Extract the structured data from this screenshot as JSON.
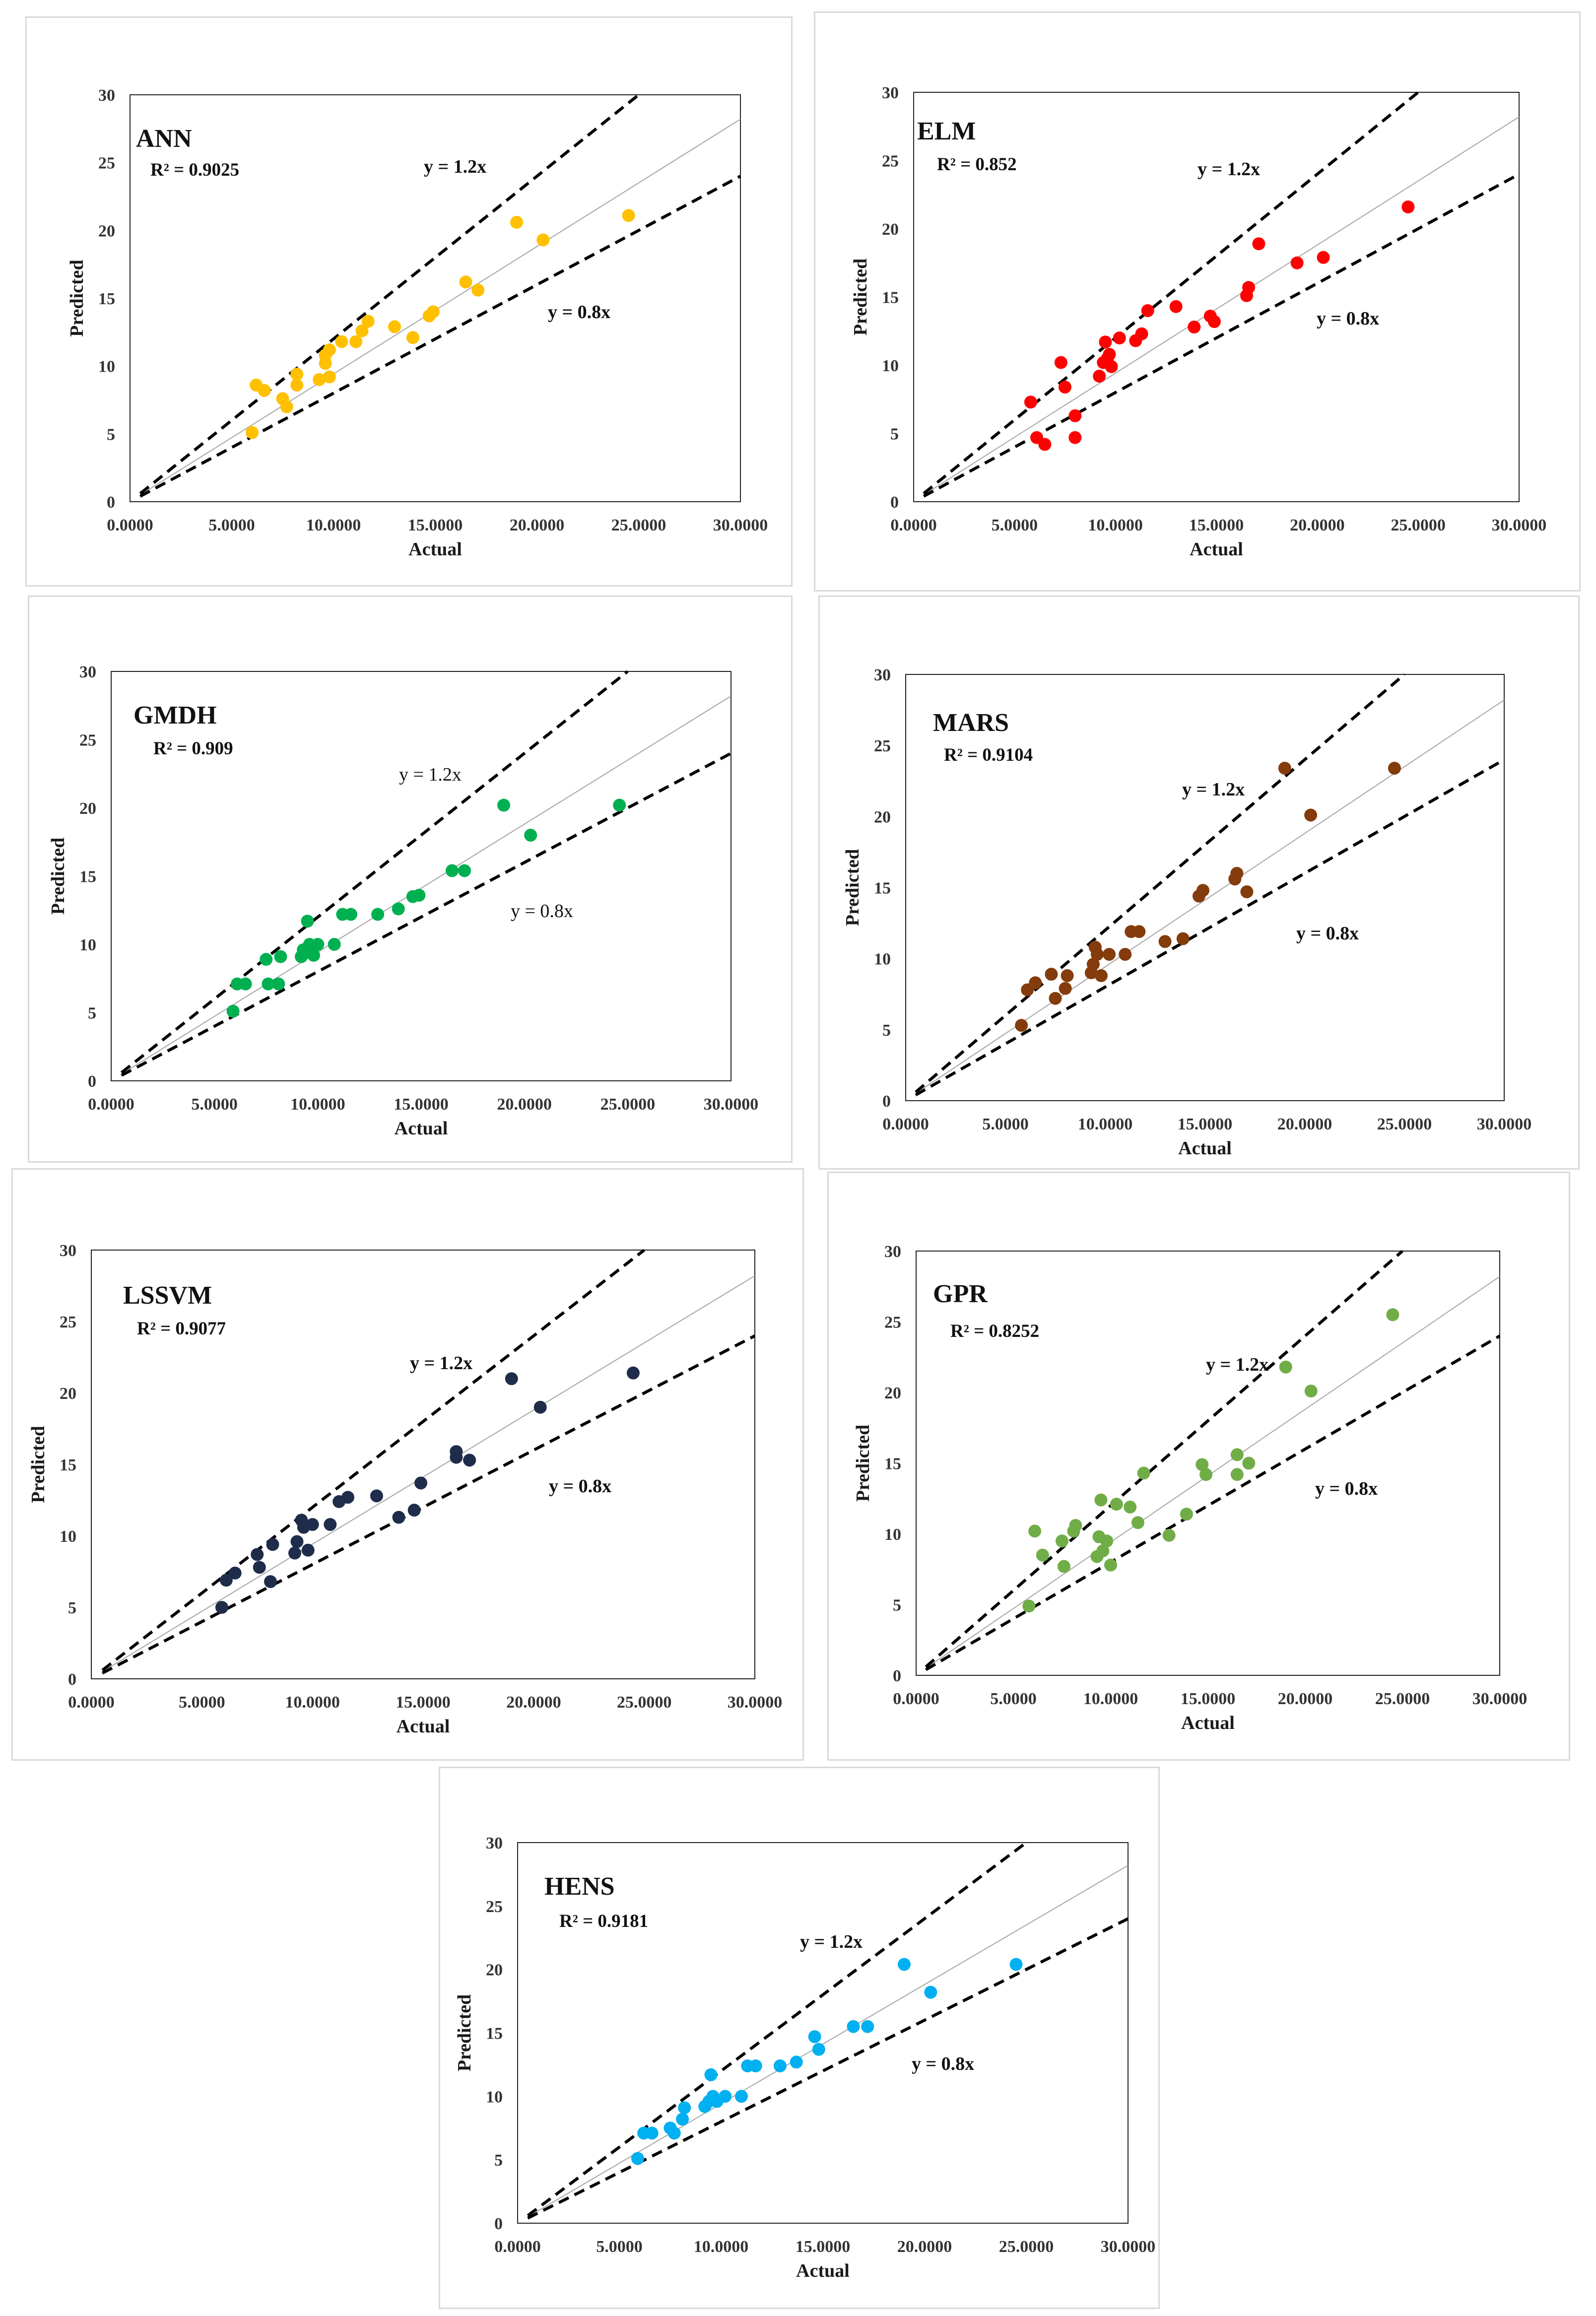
{
  "figure": {
    "x_axis_label": "Actual",
    "y_axis_label": "Predicted",
    "line_upper_label": "y = 1.2x",
    "line_lower_label": "y = 0.8x",
    "x_tick_labels": [
      "0.0000",
      "5.0000",
      "10.0000",
      "15.0000",
      "20.0000",
      "25.0000",
      "30.0000"
    ],
    "y_tick_labels": [
      "0",
      "5",
      "10",
      "15",
      "20",
      "25",
      "30"
    ]
  },
  "chart_data": [
    {
      "id": "ann",
      "type": "scatter",
      "title": "ANN",
      "r2_label": "R² = 0.9025",
      "color": "#FFC000",
      "xlabel": "Actual",
      "ylabel": "Predicted",
      "xlim": [
        0,
        30
      ],
      "ylim": [
        0,
        30
      ],
      "reference_lines": [
        "y = 1.2x",
        "y = 0.8x",
        "y = x"
      ],
      "points": [
        [
          6.0,
          5.1
        ],
        [
          6.2,
          8.6
        ],
        [
          6.6,
          8.2
        ],
        [
          7.5,
          7.6
        ],
        [
          7.7,
          7.0
        ],
        [
          8.2,
          8.6
        ],
        [
          8.2,
          9.4
        ],
        [
          9.3,
          9.0
        ],
        [
          9.6,
          10.2
        ],
        [
          9.6,
          10.8
        ],
        [
          9.8,
          9.2
        ],
        [
          9.8,
          11.2
        ],
        [
          10.4,
          11.8
        ],
        [
          11.1,
          11.8
        ],
        [
          11.4,
          12.6
        ],
        [
          11.7,
          13.3
        ],
        [
          13.0,
          12.9
        ],
        [
          13.9,
          12.1
        ],
        [
          14.7,
          13.7
        ],
        [
          14.9,
          14.0
        ],
        [
          16.5,
          16.2
        ],
        [
          17.1,
          15.6
        ],
        [
          19.0,
          20.6
        ],
        [
          20.3,
          19.3
        ],
        [
          24.5,
          21.1
        ]
      ]
    },
    {
      "id": "elm",
      "type": "scatter",
      "title": "ELM",
      "r2_label": "R² = 0.852",
      "color": "#FF0000",
      "xlabel": "Actual",
      "ylabel": "Predicted",
      "xlim": [
        0,
        30
      ],
      "ylim": [
        0,
        30
      ],
      "reference_lines": [
        "y = 1.2x",
        "y = 0.8x",
        "y = x"
      ],
      "points": [
        [
          5.8,
          7.3
        ],
        [
          6.1,
          4.7
        ],
        [
          6.5,
          4.2
        ],
        [
          7.3,
          10.2
        ],
        [
          7.5,
          8.4
        ],
        [
          8.0,
          4.7
        ],
        [
          8.0,
          6.3
        ],
        [
          9.2,
          9.2
        ],
        [
          9.4,
          10.2
        ],
        [
          9.5,
          11.7
        ],
        [
          9.6,
          10.5
        ],
        [
          9.7,
          10.8
        ],
        [
          9.8,
          9.9
        ],
        [
          10.2,
          12.0
        ],
        [
          11.0,
          11.8
        ],
        [
          11.3,
          12.3
        ],
        [
          11.6,
          14.0
        ],
        [
          13.0,
          14.3
        ],
        [
          13.9,
          12.8
        ],
        [
          14.7,
          13.6
        ],
        [
          14.9,
          13.2
        ],
        [
          16.5,
          15.1
        ],
        [
          16.6,
          15.7
        ],
        [
          17.1,
          18.9
        ],
        [
          19.0,
          17.5
        ],
        [
          20.3,
          17.9
        ],
        [
          24.5,
          21.6
        ]
      ]
    },
    {
      "id": "gmdh",
      "type": "scatter",
      "title": "GMDH",
      "r2_label": "R² = 0.909",
      "color": "#00B050",
      "xlabel": "Actual",
      "ylabel": "Predicted",
      "xlim": [
        0,
        30
      ],
      "ylim": [
        0,
        30
      ],
      "reference_lines": [
        "y = 1.2x",
        "y = 0.8x",
        "y = x"
      ],
      "points": [
        [
          5.9,
          5.1
        ],
        [
          6.1,
          7.1
        ],
        [
          6.5,
          7.1
        ],
        [
          7.5,
          8.9
        ],
        [
          7.6,
          7.1
        ],
        [
          8.1,
          7.1
        ],
        [
          8.2,
          9.1
        ],
        [
          9.2,
          9.1
        ],
        [
          9.3,
          9.6
        ],
        [
          9.5,
          11.7
        ],
        [
          9.6,
          10.0
        ],
        [
          9.8,
          9.2
        ],
        [
          10.0,
          10.0
        ],
        [
          10.8,
          10.0
        ],
        [
          11.2,
          12.2
        ],
        [
          11.6,
          12.2
        ],
        [
          12.9,
          12.2
        ],
        [
          13.9,
          12.6
        ],
        [
          14.6,
          13.5
        ],
        [
          14.9,
          13.6
        ],
        [
          16.5,
          15.4
        ],
        [
          17.1,
          15.4
        ],
        [
          19.0,
          20.2
        ],
        [
          20.3,
          18.0
        ],
        [
          24.6,
          20.2
        ]
      ]
    },
    {
      "id": "mars",
      "type": "scatter",
      "title": "MARS",
      "r2_label": "R² = 0.9104",
      "color": "#843C0C",
      "xlabel": "Actual",
      "ylabel": "Predicted",
      "xlim": [
        0,
        30
      ],
      "ylim": [
        0,
        30
      ],
      "reference_lines": [
        "y = 1.2x",
        "y = 0.8x",
        "y = x"
      ],
      "points": [
        [
          5.8,
          5.3
        ],
        [
          6.1,
          7.8
        ],
        [
          6.5,
          8.3
        ],
        [
          7.3,
          8.9
        ],
        [
          7.5,
          7.2
        ],
        [
          8.0,
          7.9
        ],
        [
          8.1,
          8.8
        ],
        [
          9.3,
          9.0
        ],
        [
          9.4,
          9.6
        ],
        [
          9.5,
          10.8
        ],
        [
          9.6,
          10.3
        ],
        [
          9.8,
          8.8
        ],
        [
          10.2,
          10.3
        ],
        [
          11.0,
          10.3
        ],
        [
          11.3,
          11.9
        ],
        [
          11.7,
          11.9
        ],
        [
          13.0,
          11.2
        ],
        [
          13.9,
          11.4
        ],
        [
          14.7,
          14.4
        ],
        [
          14.9,
          14.8
        ],
        [
          16.5,
          15.6
        ],
        [
          16.6,
          16.0
        ],
        [
          17.1,
          14.7
        ],
        [
          19.0,
          23.4
        ],
        [
          20.3,
          20.1
        ],
        [
          24.5,
          23.4
        ]
      ]
    },
    {
      "id": "lssvm",
      "type": "scatter",
      "title": "LSSVM",
      "r2_label": "R² = 0.9077",
      "color": "#1F2D4B",
      "xlabel": "Actual",
      "ylabel": "Predicted",
      "xlim": [
        0,
        30
      ],
      "ylim": [
        0,
        30
      ],
      "reference_lines": [
        "y = 1.2x",
        "y = 0.8x",
        "y = x"
      ],
      "points": [
        [
          5.9,
          5.0
        ],
        [
          6.1,
          6.9
        ],
        [
          6.5,
          7.4
        ],
        [
          7.5,
          8.7
        ],
        [
          7.6,
          7.8
        ],
        [
          8.1,
          6.8
        ],
        [
          8.2,
          9.4
        ],
        [
          9.2,
          8.8
        ],
        [
          9.3,
          9.6
        ],
        [
          9.5,
          11.1
        ],
        [
          9.6,
          10.6
        ],
        [
          9.8,
          9.0
        ],
        [
          10.0,
          10.8
        ],
        [
          10.8,
          10.8
        ],
        [
          11.2,
          12.4
        ],
        [
          11.6,
          12.7
        ],
        [
          12.9,
          12.8
        ],
        [
          13.9,
          11.3
        ],
        [
          14.6,
          11.8
        ],
        [
          14.9,
          13.7
        ],
        [
          16.5,
          15.5
        ],
        [
          16.5,
          15.9
        ],
        [
          17.1,
          15.3
        ],
        [
          19.0,
          21.0
        ],
        [
          20.3,
          19.0
        ],
        [
          24.5,
          21.4
        ]
      ]
    },
    {
      "id": "gpr",
      "type": "scatter",
      "title": "GPR",
      "r2_label": "R² = 0.8252",
      "color": "#70AD47",
      "xlabel": "Actual",
      "ylabel": "Predicted",
      "xlim": [
        0,
        30
      ],
      "ylim": [
        0,
        30
      ],
      "reference_lines": [
        "y = 1.2x",
        "y = 0.8x",
        "y = x"
      ],
      "points": [
        [
          5.8,
          4.9
        ],
        [
          6.1,
          10.2
        ],
        [
          6.5,
          8.5
        ],
        [
          7.5,
          9.5
        ],
        [
          7.6,
          7.7
        ],
        [
          8.1,
          10.2
        ],
        [
          8.2,
          10.6
        ],
        [
          9.3,
          8.4
        ],
        [
          9.4,
          9.8
        ],
        [
          9.5,
          12.4
        ],
        [
          9.6,
          8.8
        ],
        [
          9.8,
          9.5
        ],
        [
          10.0,
          7.8
        ],
        [
          10.3,
          12.1
        ],
        [
          11.0,
          11.9
        ],
        [
          11.4,
          10.8
        ],
        [
          11.7,
          14.3
        ],
        [
          13.0,
          9.9
        ],
        [
          13.9,
          11.4
        ],
        [
          14.7,
          14.9
        ],
        [
          14.9,
          14.2
        ],
        [
          16.5,
          14.2
        ],
        [
          16.5,
          15.6
        ],
        [
          17.1,
          15.0
        ],
        [
          19.0,
          21.8
        ],
        [
          20.3,
          20.1
        ],
        [
          24.5,
          25.5
        ]
      ]
    },
    {
      "id": "hens",
      "type": "scatter",
      "title": "HENS",
      "r2_label": "R² = 0.9181",
      "color": "#00B0F0",
      "xlabel": "Actual",
      "ylabel": "Predicted",
      "xlim": [
        0,
        30
      ],
      "ylim": [
        0,
        30
      ],
      "reference_lines": [
        "y = 1.2x",
        "y = 0.8x",
        "y = x"
      ],
      "points": [
        [
          5.9,
          5.1
        ],
        [
          6.2,
          7.1
        ],
        [
          6.6,
          7.1
        ],
        [
          7.5,
          7.5
        ],
        [
          7.7,
          7.1
        ],
        [
          8.1,
          8.2
        ],
        [
          8.2,
          9.1
        ],
        [
          9.2,
          9.2
        ],
        [
          9.4,
          9.6
        ],
        [
          9.5,
          11.7
        ],
        [
          9.6,
          10.0
        ],
        [
          9.8,
          9.6
        ],
        [
          10.2,
          10.0
        ],
        [
          11.0,
          10.0
        ],
        [
          11.3,
          12.4
        ],
        [
          11.7,
          12.4
        ],
        [
          12.9,
          12.4
        ],
        [
          13.7,
          12.7
        ],
        [
          14.6,
          14.7
        ],
        [
          14.8,
          13.7
        ],
        [
          16.5,
          15.5
        ],
        [
          17.2,
          15.5
        ],
        [
          19.0,
          20.4
        ],
        [
          20.3,
          18.2
        ],
        [
          24.5,
          20.4
        ]
      ]
    }
  ]
}
